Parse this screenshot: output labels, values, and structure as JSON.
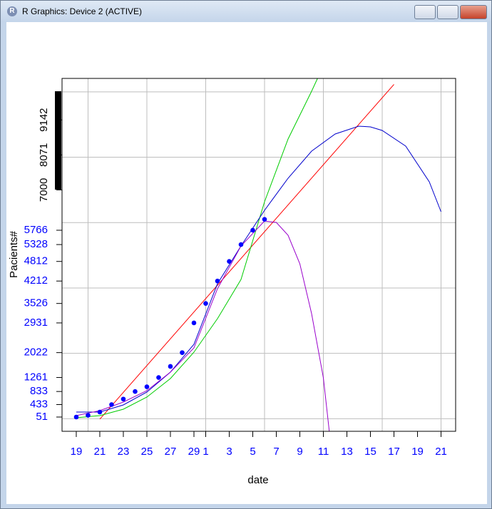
{
  "window_title": "R Graphics: Device 2 (ACTIVE)",
  "chart_data": {
    "type": "line",
    "x_label": "date",
    "y_label": "Pacients#",
    "xlim": [
      -1.21,
      32.24
    ],
    "ylim": [
      -385,
      10411
    ],
    "xticks": [
      {
        "value": 0,
        "label": "19"
      },
      {
        "value": 2,
        "label": "21"
      },
      {
        "value": 4,
        "label": "23"
      },
      {
        "value": 6,
        "label": "25"
      },
      {
        "value": 8,
        "label": "27"
      },
      {
        "value": 10,
        "label": "29"
      },
      {
        "value": 11,
        "label": "1"
      },
      {
        "value": 13,
        "label": "3"
      },
      {
        "value": 15,
        "label": "5"
      },
      {
        "value": 17,
        "label": "7"
      },
      {
        "value": 19,
        "label": "9"
      },
      {
        "value": 21,
        "label": "11"
      },
      {
        "value": 23,
        "label": "13"
      },
      {
        "value": 25,
        "label": "15"
      },
      {
        "value": 27,
        "label": "17"
      },
      {
        "value": 29,
        "label": "19"
      },
      {
        "value": 31,
        "label": "21"
      }
    ],
    "xtick_color": "#0000ff",
    "yticks": [
      51,
      433,
      833,
      1261,
      2022,
      2931,
      3526,
      4212,
      4812,
      5328,
      5766
    ],
    "ytick_color": "#0000ff",
    "yticks_rotated": [
      7000,
      8071,
      9142
    ],
    "yticks_rotated_color": "#000000",
    "grid": true,
    "xgrid": [
      1,
      6,
      11,
      16,
      21,
      26,
      31
    ],
    "ygrid": [
      0,
      2000,
      4000,
      6000,
      8000,
      10000
    ],
    "series": [
      {
        "style": "line",
        "color": "#ff0000",
        "x": [
          2,
          27
        ],
        "values": [
          -12,
          10228
        ]
      },
      {
        "style": "line",
        "color": "#00cc00",
        "x": [
          0,
          2,
          4,
          6,
          8,
          10,
          12,
          14,
          16,
          18,
          20,
          20.5
        ],
        "values": [
          29,
          95,
          291,
          662,
          1229,
          2036,
          3061,
          4260,
          6638,
          8557,
          10018,
          10411
        ]
      },
      {
        "style": "line",
        "color": "#0000cc",
        "x": [
          0,
          2,
          4,
          6,
          8,
          10,
          12,
          14,
          16,
          18,
          20,
          22,
          24,
          25,
          26,
          28,
          30,
          31
        ],
        "values": [
          204,
          204,
          422,
          814,
          1425,
          2276,
          4130,
          5286,
          6376,
          7357,
          8186,
          8710,
          8950,
          8928,
          8818,
          8339,
          7248,
          6332
        ]
      },
      {
        "style": "line",
        "color": "#9900cc",
        "x": [
          0,
          2,
          4,
          6,
          8,
          10,
          12,
          14,
          16,
          17,
          18,
          19,
          20,
          21,
          21.5
        ],
        "values": [
          95,
          247,
          509,
          858,
          1425,
          2167,
          3977,
          5286,
          6049,
          6005,
          5613,
          4740,
          3214,
          1251,
          -385
        ]
      },
      {
        "style": "points",
        "color": "#0000ff",
        "x": [
          0,
          1,
          2,
          3,
          4,
          5,
          6,
          7,
          8,
          9,
          10,
          11,
          12,
          13,
          14,
          15,
          16,
          17
        ],
        "values": [
          51,
          104,
          204,
          433,
          602,
          833,
          977,
          1261,
          1600,
          2022,
          2931,
          3526,
          4212,
          4812,
          5328,
          5766,
          6100,
          null
        ]
      }
    ]
  }
}
